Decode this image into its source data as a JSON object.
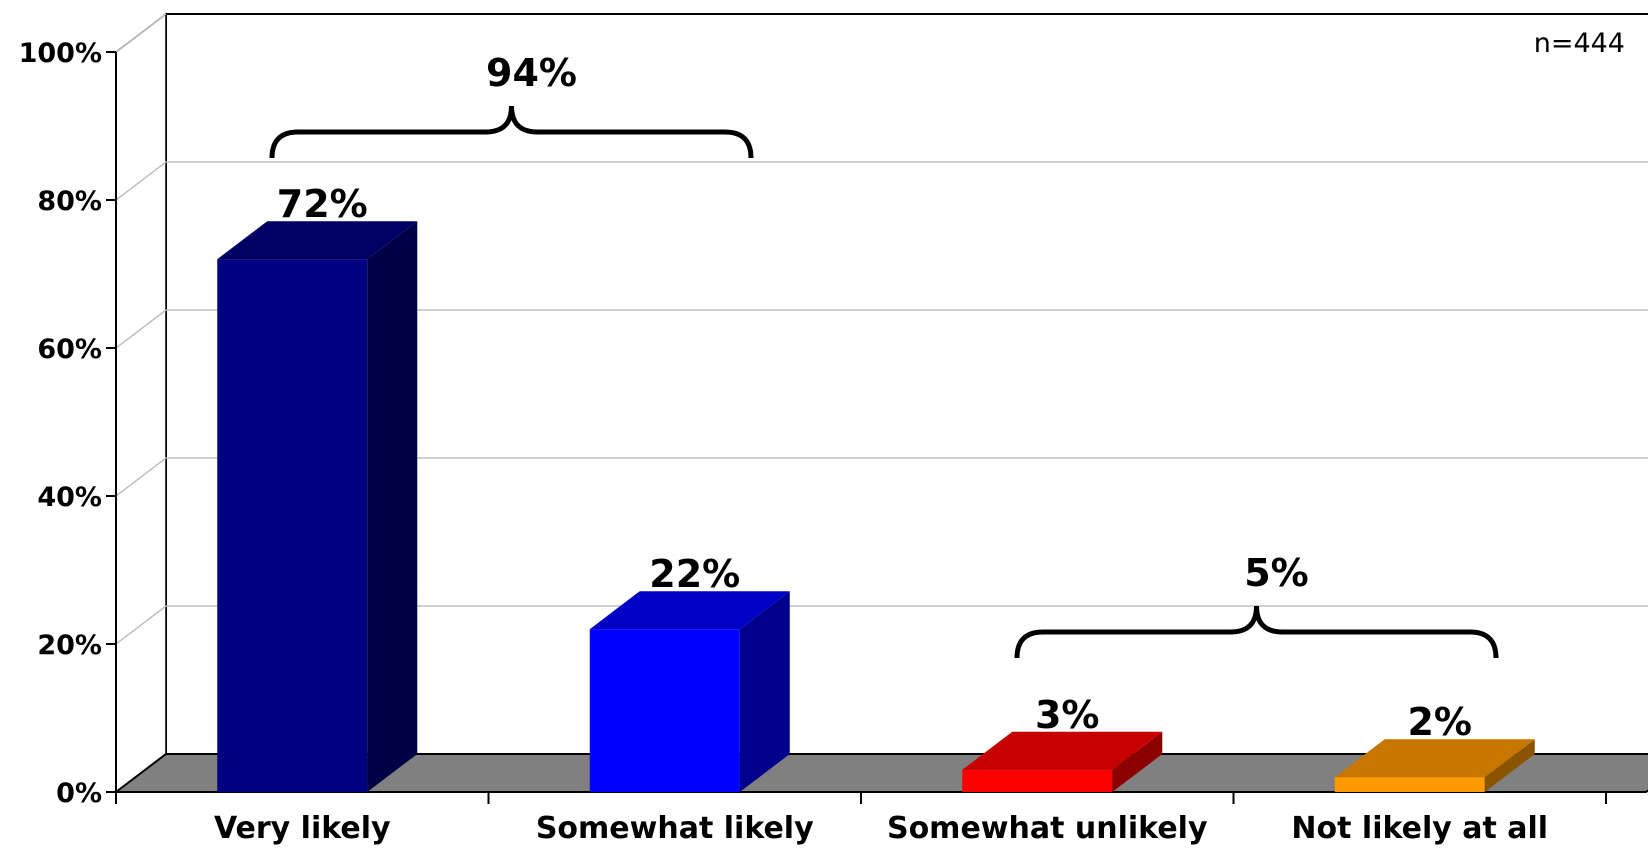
{
  "chart_data": {
    "type": "bar",
    "three_d": true,
    "categories": [
      "Very likely",
      "Somewhat likely",
      "Somewhat unlikely",
      "Not likely at all"
    ],
    "values": [
      72,
      22,
      3,
      2
    ],
    "data_labels": [
      "72%",
      "22%",
      "3%",
      "2%"
    ],
    "bar_colors": [
      "#000080",
      "#0000ff",
      "#ff0000",
      "#ff9900"
    ],
    "ylim": [
      0,
      100
    ],
    "yticks": [
      0,
      20,
      40,
      60,
      80,
      100
    ],
    "ytick_labels": [
      "0%",
      "20%",
      "40%",
      "60%",
      "80%",
      "100%"
    ],
    "grid": true,
    "floor_color": "#808080",
    "sample_note": "n=444",
    "groups": [
      {
        "label": "94%",
        "from": 0,
        "to": 1
      },
      {
        "label": "5%",
        "from": 2,
        "to": 3
      }
    ]
  }
}
